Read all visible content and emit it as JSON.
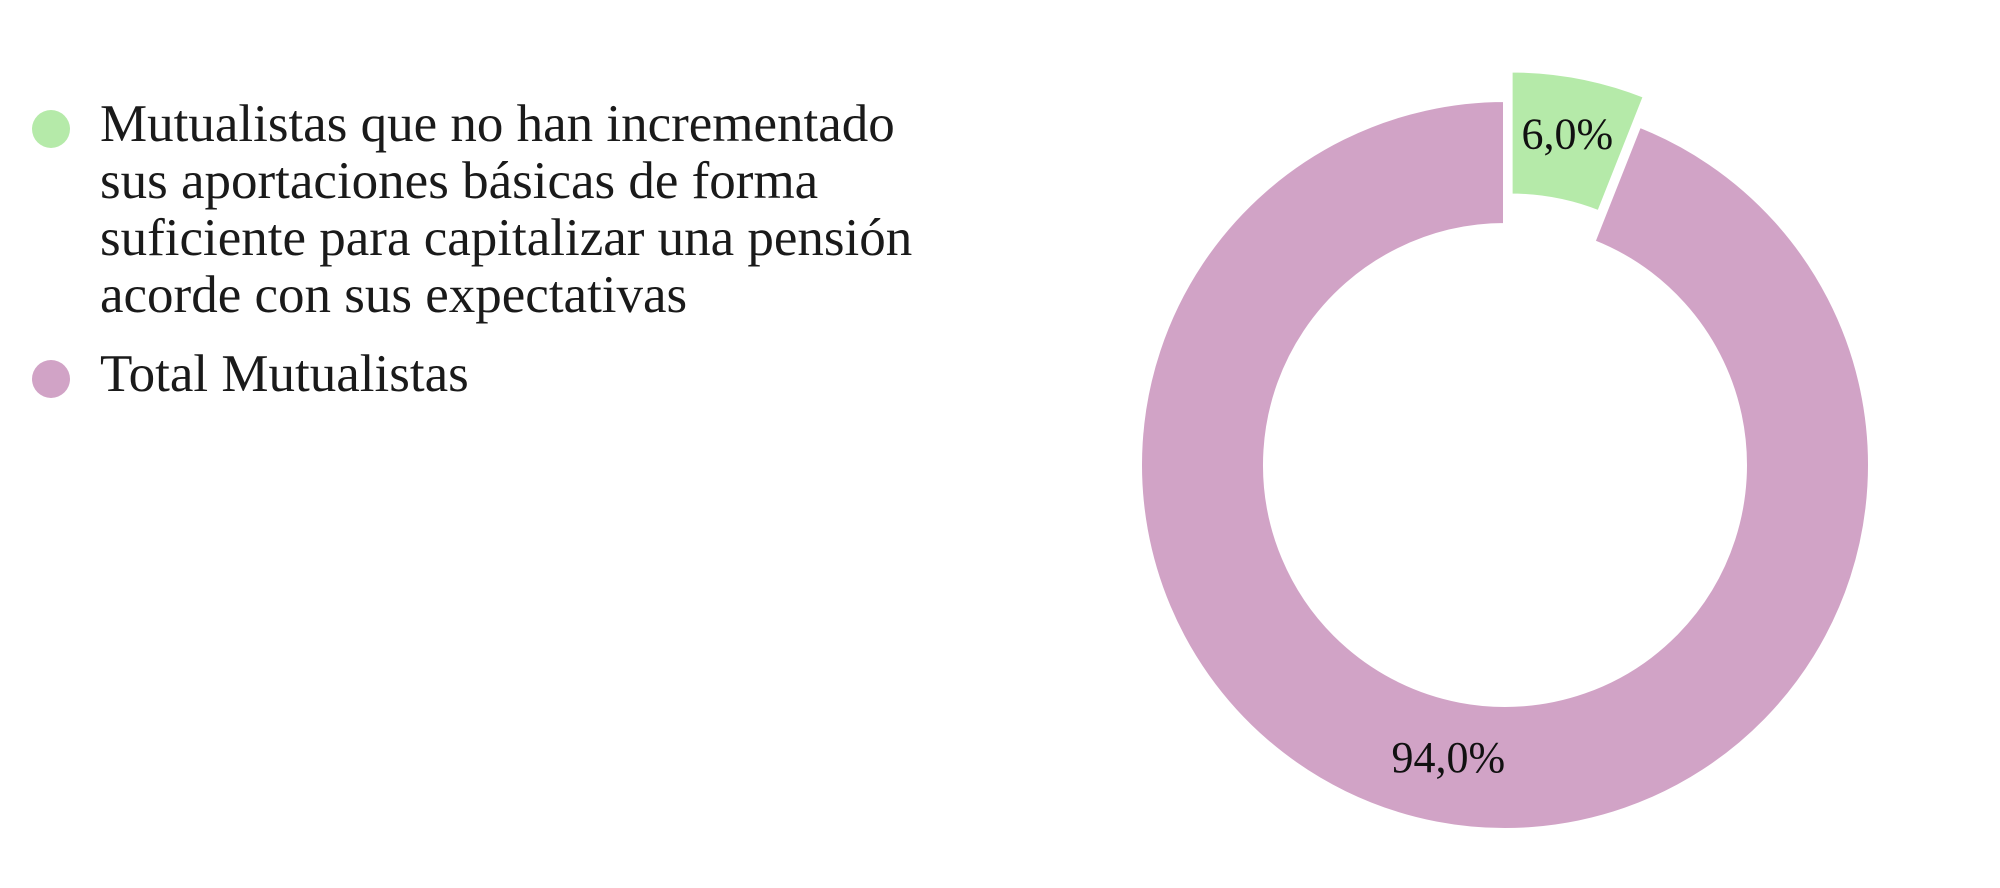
{
  "chart_data": {
    "type": "pie",
    "categories": [
      "Mutualistas que no han incrementado\nsus aportaciones básicas de forma\nsuficiente para capitalizar una pensión\nacorde con sus expectativas",
      "Total Mutualistas"
    ],
    "values": [
      6.0,
      94.0
    ],
    "value_labels": [
      "6,0%",
      "94,0%"
    ],
    "colors": [
      "#b5eaa9",
      "#d1a3c6"
    ],
    "donut": true,
    "exploded_slice": 0,
    "legend_position": "left"
  }
}
